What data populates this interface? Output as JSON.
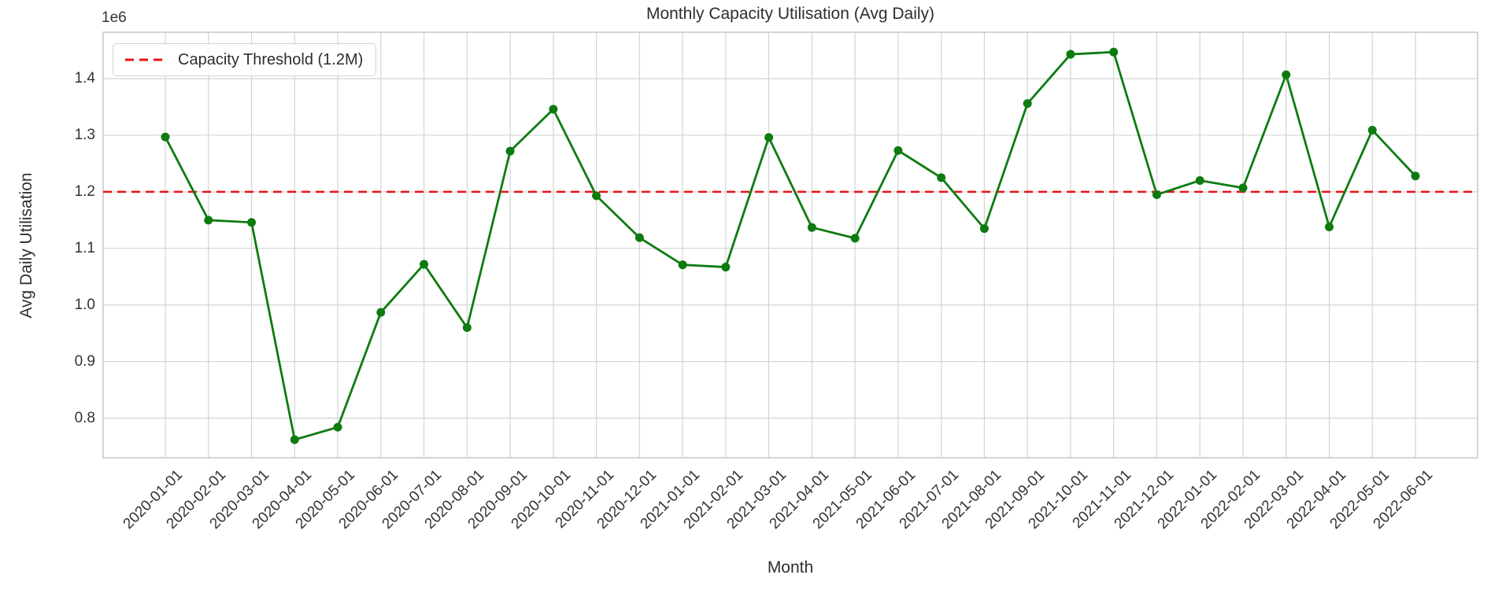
{
  "chart_data": {
    "type": "line",
    "title": "Monthly Capacity Utilisation (Avg Daily)",
    "xlabel": "Month",
    "ylabel": "Avg Daily Utilisation",
    "y_offset_label": "1e6",
    "categories": [
      "2020-01-01",
      "2020-02-01",
      "2020-03-01",
      "2020-04-01",
      "2020-05-01",
      "2020-06-01",
      "2020-07-01",
      "2020-08-01",
      "2020-09-01",
      "2020-10-01",
      "2020-11-01",
      "2020-12-01",
      "2021-01-01",
      "2021-02-01",
      "2021-03-01",
      "2021-04-01",
      "2021-05-01",
      "2021-06-01",
      "2021-07-01",
      "2021-08-01",
      "2021-09-01",
      "2021-10-01",
      "2021-11-01",
      "2021-12-01",
      "2022-01-01",
      "2022-02-01",
      "2022-03-01",
      "2022-04-01",
      "2022-05-01",
      "2022-06-01"
    ],
    "series": [
      {
        "name": "Avg Daily Utilisation",
        "color": "#0e7b10",
        "marker": "circle",
        "values_1e6": [
          1.297,
          1.15,
          1.146,
          0.762,
          0.784,
          0.987,
          1.072,
          0.96,
          1.272,
          1.346,
          1.193,
          1.119,
          1.071,
          1.067,
          1.296,
          1.137,
          1.118,
          1.273,
          1.225,
          1.135,
          1.356,
          1.443,
          1.447,
          1.195,
          1.22,
          1.207,
          1.407,
          1.138,
          1.309,
          1.228
        ]
      }
    ],
    "threshold": {
      "label": "Capacity Threshold (1.2M)",
      "value_1e6": 1.2,
      "color": "#ee1111",
      "style": "dashed"
    },
    "ylim_1e6": [
      0.73,
      1.482
    ],
    "yticks_1e6": [
      0.8,
      0.9,
      1.0,
      1.1,
      1.2,
      1.3,
      1.4
    ],
    "grid": true,
    "legend_position": "upper left",
    "colors": {
      "grid": "#d4d4d4",
      "spine": "#c9c9c9",
      "text": "#333333"
    }
  }
}
